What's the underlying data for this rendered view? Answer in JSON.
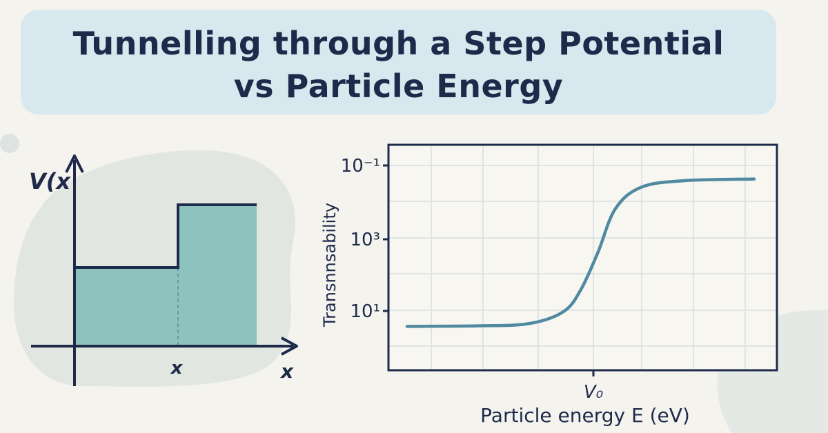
{
  "title": {
    "line1": "Tunnelling through a Step Potential",
    "line2": "vs Particle Energy"
  },
  "step_diagram": {
    "y_axis_label": "V(x",
    "x_axis_label": "x",
    "step_position_label": "x",
    "colors": {
      "fill": "#8ec2bf",
      "line": "#1e2a4a"
    }
  },
  "chart_data": {
    "type": "line",
    "title": "",
    "xlabel": "Particle energy E (eV)",
    "ylabel": "Transnnsability",
    "x_ticks": [
      "V₀"
    ],
    "y_ticks": [
      "10⁻¹",
      "10³",
      "10¹"
    ],
    "y_scale": "log",
    "grid": true,
    "series": [
      {
        "shape": "sigmoid rising from low plateau below V₀ to high plateau above V₀",
        "color": "#4f8aa0",
        "points": [
          {
            "x": -1.0,
            "y": 0.03
          },
          {
            "x": -0.6,
            "y": 0.04
          },
          {
            "x": -0.3,
            "y": 0.08
          },
          {
            "x": -0.1,
            "y": 0.3
          },
          {
            "x": 0.0,
            "y": 0.7
          },
          {
            "x": 0.1,
            "y": 1.4
          },
          {
            "x": 0.2,
            "y": 2.2
          },
          {
            "x": 0.35,
            "y": 2.6
          },
          {
            "x": 0.6,
            "y": 2.72
          },
          {
            "x": 1.0,
            "y": 2.75
          }
        ]
      }
    ]
  }
}
